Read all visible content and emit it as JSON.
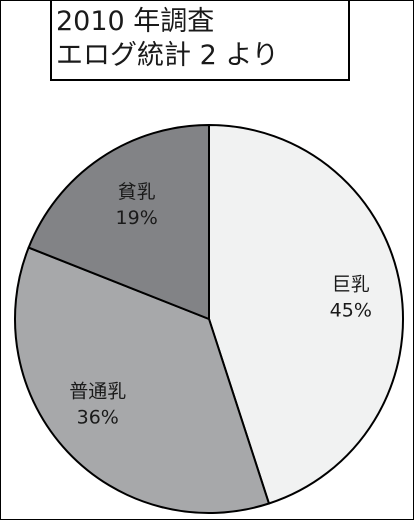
{
  "chart_data": {
    "type": "pie",
    "title_lines": [
      "2010 年調査",
      "エログ統計 2 より"
    ],
    "slices": [
      {
        "label": "巨乳",
        "value": 45,
        "value_label": "45%",
        "color": "#f1f2f2"
      },
      {
        "label": "普通乳",
        "value": 36,
        "value_label": "36%",
        "color": "#a7a8aa"
      },
      {
        "label": "貧乳",
        "value": 19,
        "value_label": "19%",
        "color": "#828386"
      }
    ],
    "start_angle": "12 o'clock",
    "direction": "clockwise",
    "legend": "none"
  }
}
